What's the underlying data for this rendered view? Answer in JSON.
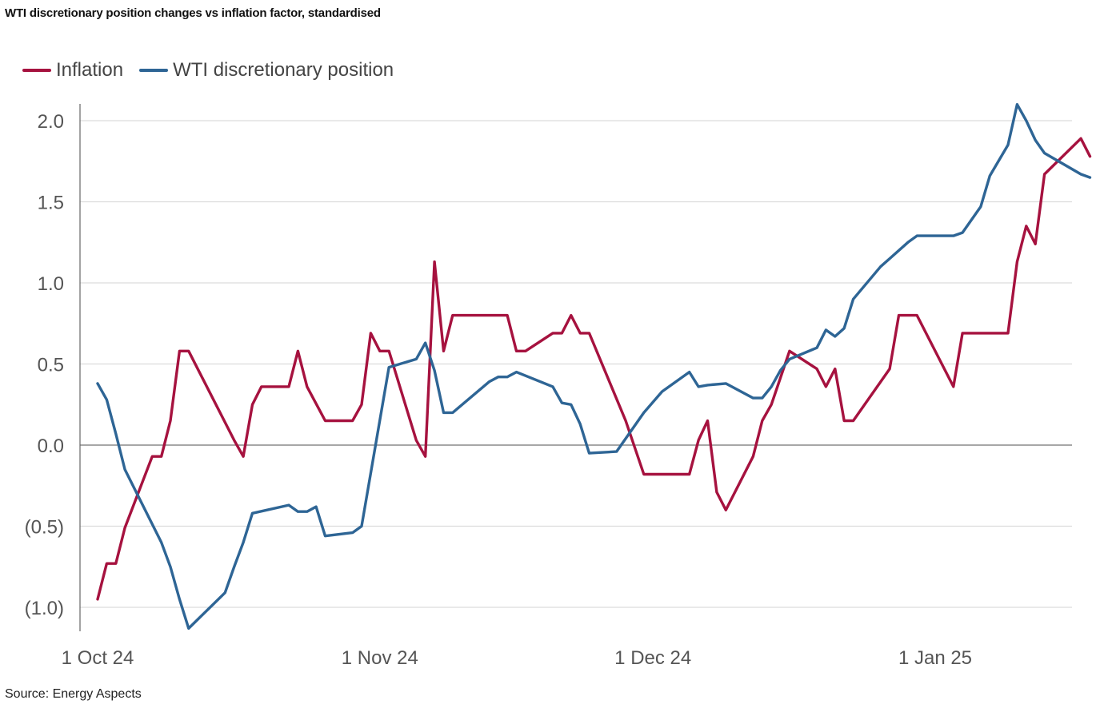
{
  "chart_data": {
    "type": "line",
    "title": "WTI discretionary position changes vs inflation factor, standardised",
    "xlabel": "",
    "ylabel": "",
    "ylim": [
      -1.15,
      2.1
    ],
    "yticks": [
      {
        "value": 2.0,
        "label": "2.0"
      },
      {
        "value": 1.5,
        "label": "1.5"
      },
      {
        "value": 1.0,
        "label": "1.0"
      },
      {
        "value": 0.5,
        "label": "0.5"
      },
      {
        "value": 0.0,
        "label": "0.0"
      },
      {
        "value": -0.5,
        "label": "(0.5)"
      },
      {
        "value": -1.0,
        "label": "(1.0)"
      }
    ],
    "x_range": [
      "2024-10-01",
      "2025-01-19"
    ],
    "xticks": [
      {
        "date": "2024-10-01",
        "label": "1 Oct 24"
      },
      {
        "date": "2024-11-01",
        "label": "1 Nov 24"
      },
      {
        "date": "2024-12-01",
        "label": "1 Dec 24"
      },
      {
        "date": "2025-01-01",
        "label": "1 Jan 25"
      }
    ],
    "grid": true,
    "legend_position": "top-left",
    "series": [
      {
        "name": "Inflation",
        "color": "#A6123F",
        "points": [
          [
            "2024-10-01",
            -0.95
          ],
          [
            "2024-10-02",
            -0.73
          ],
          [
            "2024-10-03",
            -0.73
          ],
          [
            "2024-10-04",
            -0.51
          ],
          [
            "2024-10-07",
            -0.07
          ],
          [
            "2024-10-08",
            -0.07
          ],
          [
            "2024-10-09",
            0.15
          ],
          [
            "2024-10-10",
            0.58
          ],
          [
            "2024-10-11",
            0.58
          ],
          [
            "2024-10-16",
            0.03
          ],
          [
            "2024-10-17",
            -0.07
          ],
          [
            "2024-10-18",
            0.25
          ],
          [
            "2024-10-19",
            0.36
          ],
          [
            "2024-10-22",
            0.36
          ],
          [
            "2024-10-23",
            0.58
          ],
          [
            "2024-10-24",
            0.36
          ],
          [
            "2024-10-26",
            0.15
          ],
          [
            "2024-10-29",
            0.15
          ],
          [
            "2024-10-30",
            0.25
          ],
          [
            "2024-10-31",
            0.69
          ],
          [
            "2024-11-01",
            0.58
          ],
          [
            "2024-11-02",
            0.58
          ],
          [
            "2024-11-05",
            0.03
          ],
          [
            "2024-11-06",
            -0.07
          ],
          [
            "2024-11-07",
            1.13
          ],
          [
            "2024-11-08",
            0.58
          ],
          [
            "2024-11-09",
            0.8
          ],
          [
            "2024-11-15",
            0.8
          ],
          [
            "2024-11-16",
            0.58
          ],
          [
            "2024-11-17",
            0.58
          ],
          [
            "2024-11-20",
            0.69
          ],
          [
            "2024-11-21",
            0.69
          ],
          [
            "2024-11-22",
            0.8
          ],
          [
            "2024-11-23",
            0.69
          ],
          [
            "2024-11-24",
            0.69
          ],
          [
            "2024-11-28",
            0.15
          ],
          [
            "2024-11-30",
            -0.18
          ],
          [
            "2024-12-05",
            -0.18
          ],
          [
            "2024-12-06",
            0.03
          ],
          [
            "2024-12-07",
            0.15
          ],
          [
            "2024-12-08",
            -0.29
          ],
          [
            "2024-12-09",
            -0.4
          ],
          [
            "2024-12-12",
            -0.07
          ],
          [
            "2024-12-13",
            0.15
          ],
          [
            "2024-12-14",
            0.25
          ],
          [
            "2024-12-16",
            0.58
          ],
          [
            "2024-12-19",
            0.47
          ],
          [
            "2024-12-20",
            0.36
          ],
          [
            "2024-12-21",
            0.47
          ],
          [
            "2024-12-22",
            0.15
          ],
          [
            "2024-12-23",
            0.15
          ],
          [
            "2024-12-27",
            0.47
          ],
          [
            "2024-12-28",
            0.8
          ],
          [
            "2024-12-30",
            0.8
          ],
          [
            "2025-01-03",
            0.36
          ],
          [
            "2025-01-04",
            0.69
          ],
          [
            "2025-01-09",
            0.69
          ],
          [
            "2025-01-10",
            1.13
          ],
          [
            "2025-01-11",
            1.35
          ],
          [
            "2025-01-12",
            1.24
          ],
          [
            "2025-01-13",
            1.67
          ],
          [
            "2025-01-17",
            1.89
          ],
          [
            "2025-01-18",
            1.78
          ]
        ]
      },
      {
        "name": "WTI discretionary position",
        "color": "#2E6595",
        "points": [
          [
            "2024-10-01",
            0.38
          ],
          [
            "2024-10-02",
            0.28
          ],
          [
            "2024-10-03",
            0.07
          ],
          [
            "2024-10-04",
            -0.15
          ],
          [
            "2024-10-08",
            -0.6
          ],
          [
            "2024-10-09",
            -0.75
          ],
          [
            "2024-10-10",
            -0.95
          ],
          [
            "2024-10-11",
            -1.13
          ],
          [
            "2024-10-15",
            -0.91
          ],
          [
            "2024-10-16",
            -0.75
          ],
          [
            "2024-10-17",
            -0.6
          ],
          [
            "2024-10-18",
            -0.42
          ],
          [
            "2024-10-22",
            -0.37
          ],
          [
            "2024-10-23",
            -0.41
          ],
          [
            "2024-10-24",
            -0.41
          ],
          [
            "2024-10-25",
            -0.38
          ],
          [
            "2024-10-26",
            -0.56
          ],
          [
            "2024-10-29",
            -0.54
          ],
          [
            "2024-10-30",
            -0.5
          ],
          [
            "2024-11-02",
            0.48
          ],
          [
            "2024-11-05",
            0.53
          ],
          [
            "2024-11-06",
            0.63
          ],
          [
            "2024-11-07",
            0.46
          ],
          [
            "2024-11-08",
            0.2
          ],
          [
            "2024-11-09",
            0.2
          ],
          [
            "2024-11-13",
            0.39
          ],
          [
            "2024-11-14",
            0.42
          ],
          [
            "2024-11-15",
            0.42
          ],
          [
            "2024-11-16",
            0.45
          ],
          [
            "2024-11-20",
            0.36
          ],
          [
            "2024-11-21",
            0.26
          ],
          [
            "2024-11-22",
            0.25
          ],
          [
            "2024-11-23",
            0.13
          ],
          [
            "2024-11-24",
            -0.05
          ],
          [
            "2024-11-27",
            -0.04
          ],
          [
            "2024-11-30",
            0.2
          ],
          [
            "2024-12-02",
            0.33
          ],
          [
            "2024-12-05",
            0.45
          ],
          [
            "2024-12-06",
            0.36
          ],
          [
            "2024-12-07",
            0.37
          ],
          [
            "2024-12-09",
            0.38
          ],
          [
            "2024-12-12",
            0.29
          ],
          [
            "2024-12-13",
            0.29
          ],
          [
            "2024-12-14",
            0.36
          ],
          [
            "2024-12-15",
            0.46
          ],
          [
            "2024-12-16",
            0.53
          ],
          [
            "2024-12-19",
            0.6
          ],
          [
            "2024-12-20",
            0.71
          ],
          [
            "2024-12-21",
            0.67
          ],
          [
            "2024-12-22",
            0.72
          ],
          [
            "2024-12-23",
            0.9
          ],
          [
            "2024-12-26",
            1.1
          ],
          [
            "2024-12-27",
            1.15
          ],
          [
            "2024-12-29",
            1.25
          ],
          [
            "2024-12-30",
            1.29
          ],
          [
            "2025-01-03",
            1.29
          ],
          [
            "2025-01-04",
            1.31
          ],
          [
            "2025-01-06",
            1.47
          ],
          [
            "2025-01-07",
            1.66
          ],
          [
            "2025-01-09",
            1.85
          ],
          [
            "2025-01-10",
            2.1
          ],
          [
            "2025-01-11",
            2.0
          ],
          [
            "2025-01-12",
            1.88
          ],
          [
            "2025-01-13",
            1.8
          ],
          [
            "2025-01-17",
            1.67
          ],
          [
            "2025-01-18",
            1.65
          ]
        ]
      }
    ]
  },
  "source": "Source: Energy Aspects"
}
